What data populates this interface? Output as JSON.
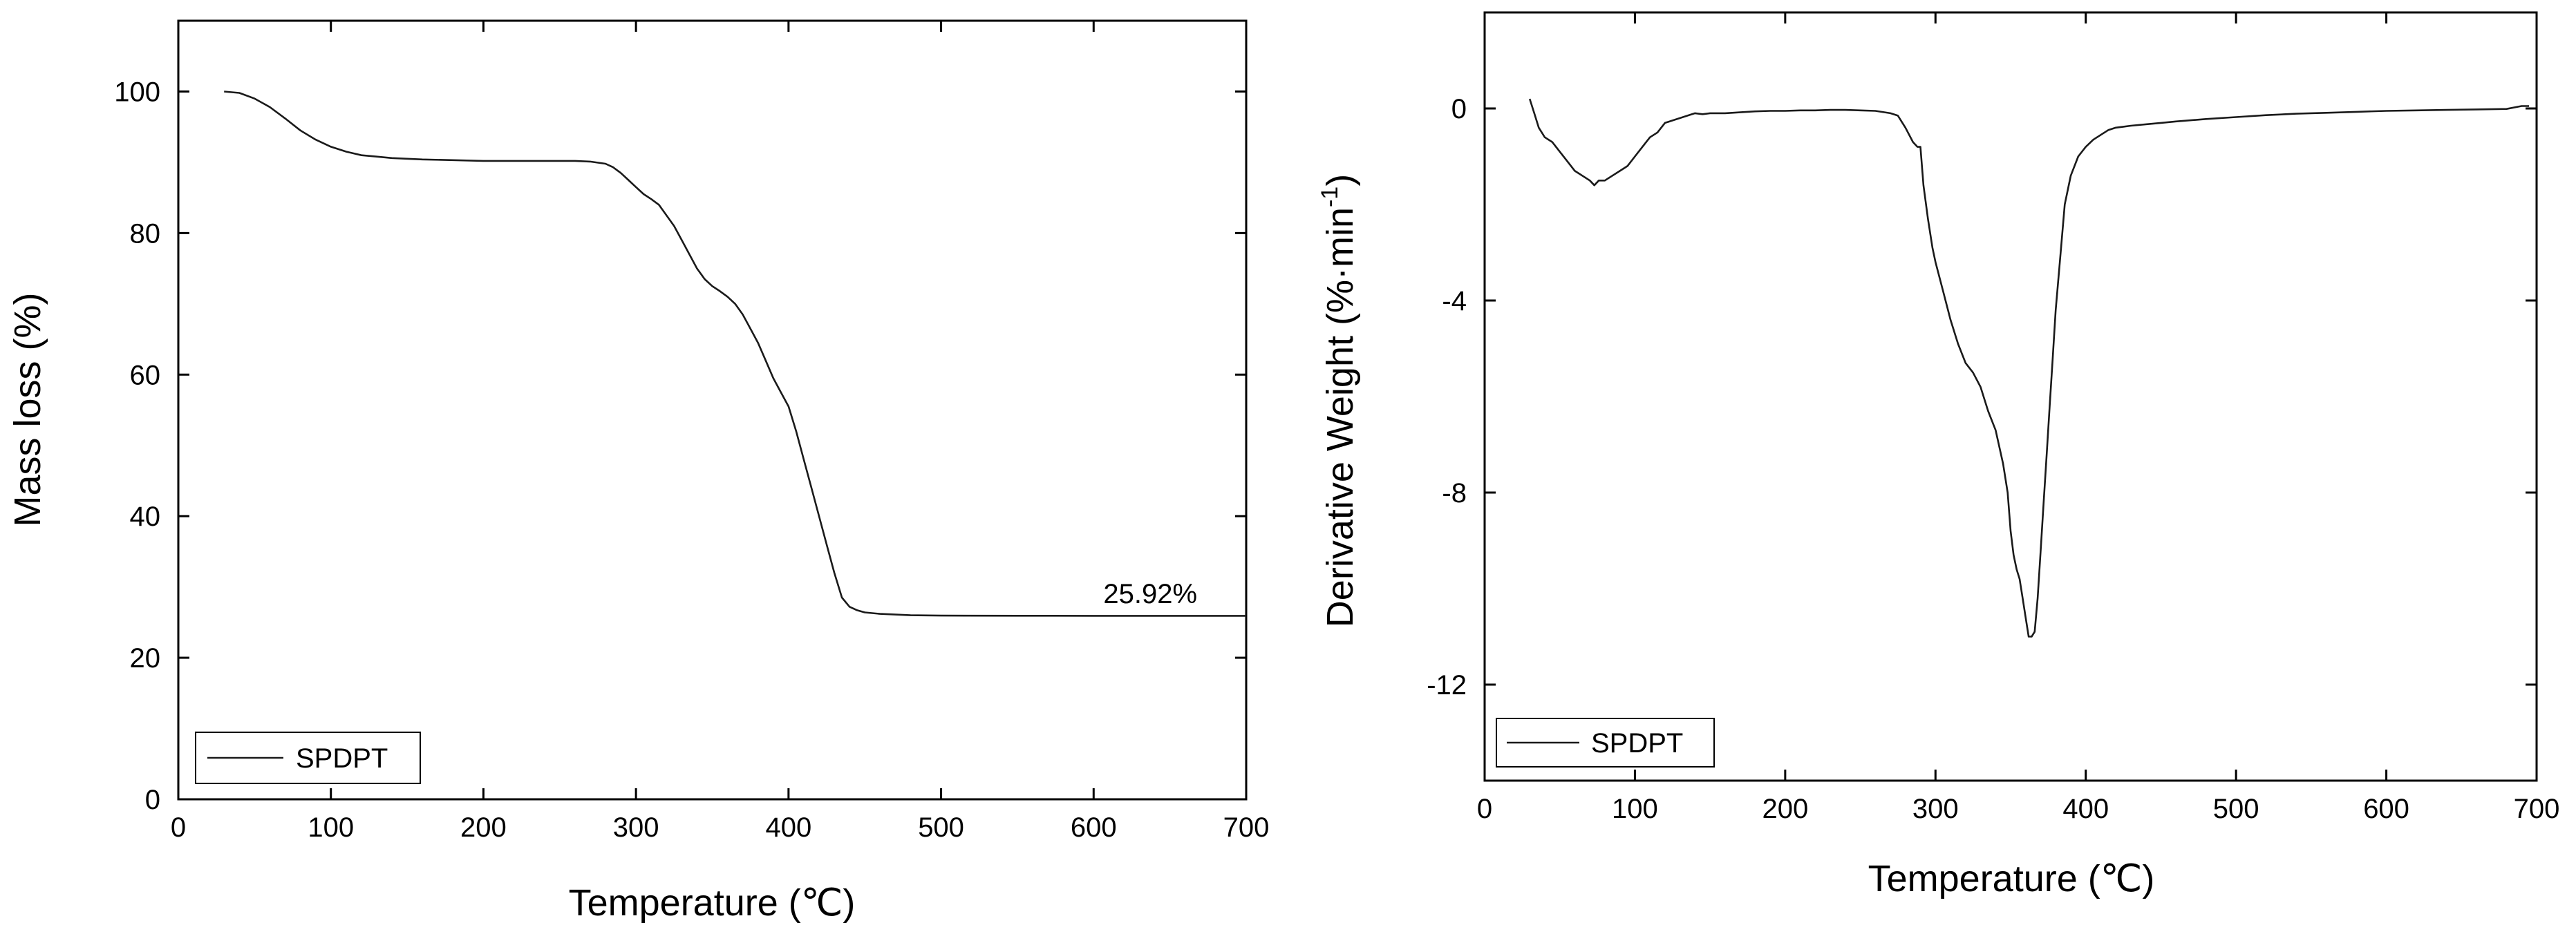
{
  "chart_data": [
    {
      "type": "line",
      "xlabel": "Temperature (℃)",
      "ylabel": "Mass loss (%)",
      "xlim": [
        0,
        700
      ],
      "ylim": [
        0,
        110
      ],
      "x_ticks": [
        0,
        100,
        200,
        300,
        400,
        500,
        600,
        700
      ],
      "y_ticks": [
        0,
        20,
        40,
        60,
        80,
        100
      ],
      "grid": false,
      "legend": {
        "position": "bottom-left",
        "entries": [
          "SPDPT"
        ]
      },
      "annotations": [
        {
          "text": "25.92%",
          "x": 620,
          "y": 28.5
        }
      ],
      "series": [
        {
          "name": "SPDPT",
          "x": [
            30,
            40,
            50,
            60,
            70,
            80,
            90,
            100,
            110,
            120,
            130,
            140,
            160,
            180,
            200,
            220,
            240,
            260,
            270,
            280,
            285,
            290,
            295,
            300,
            305,
            310,
            315,
            320,
            325,
            330,
            335,
            340,
            345,
            350,
            355,
            360,
            365,
            370,
            375,
            380,
            385,
            390,
            395,
            400,
            405,
            410,
            415,
            420,
            425,
            430,
            435,
            440,
            445,
            450,
            460,
            470,
            480,
            500,
            550,
            600,
            650,
            700
          ],
          "y": [
            100,
            99.8,
            99.0,
            97.8,
            96.2,
            94.5,
            93.2,
            92.2,
            91.5,
            91.0,
            90.8,
            90.6,
            90.4,
            90.3,
            90.2,
            90.2,
            90.2,
            90.2,
            90.1,
            89.8,
            89.3,
            88.5,
            87.5,
            86.5,
            85.5,
            84.8,
            84.0,
            82.5,
            81.0,
            79.0,
            77.0,
            75.0,
            73.5,
            72.5,
            71.8,
            71.0,
            70.0,
            68.5,
            66.5,
            64.5,
            62.0,
            59.5,
            57.5,
            55.5,
            52.0,
            48.0,
            44.0,
            40.0,
            36.0,
            32.0,
            28.5,
            27.2,
            26.7,
            26.4,
            26.2,
            26.1,
            26.0,
            25.95,
            25.93,
            25.92,
            25.92,
            25.92
          ]
        }
      ]
    },
    {
      "type": "line",
      "xlabel": "Temperature (℃)",
      "ylabel": "Derivative Weight (%·min",
      "ylabel_sup": "-1",
      "ylabel_close": ")",
      "xlim": [
        0,
        700
      ],
      "ylim": [
        -14,
        2
      ],
      "x_ticks": [
        0,
        100,
        200,
        300,
        400,
        500,
        600,
        700
      ],
      "y_ticks": [
        0,
        -4,
        -8,
        -12
      ],
      "grid": false,
      "legend": {
        "position": "bottom-left",
        "entries": [
          "SPDPT"
        ]
      },
      "series": [
        {
          "name": "SPDPT",
          "x": [
            30,
            33,
            36,
            40,
            45,
            50,
            55,
            60,
            65,
            70,
            73,
            76,
            80,
            85,
            90,
            95,
            100,
            105,
            110,
            115,
            120,
            125,
            130,
            135,
            140,
            145,
            150,
            160,
            170,
            180,
            190,
            200,
            210,
            220,
            230,
            240,
            250,
            260,
            270,
            275,
            280,
            285,
            288,
            290,
            292,
            295,
            298,
            300,
            305,
            310,
            315,
            320,
            325,
            330,
            335,
            340,
            345,
            348,
            350,
            352,
            354,
            356,
            358,
            360,
            362,
            364,
            366,
            368,
            370,
            372,
            374,
            376,
            378,
            380,
            383,
            386,
            390,
            395,
            400,
            405,
            410,
            415,
            420,
            425,
            430,
            440,
            450,
            460,
            480,
            500,
            520,
            540,
            560,
            580,
            600,
            620,
            640,
            660,
            680,
            690,
            695
          ],
          "y": [
            0.2,
            -0.1,
            -0.4,
            -0.6,
            -0.7,
            -0.9,
            -1.1,
            -1.3,
            -1.4,
            -1.5,
            -1.6,
            -1.5,
            -1.5,
            -1.4,
            -1.3,
            -1.2,
            -1.0,
            -0.8,
            -0.6,
            -0.5,
            -0.3,
            -0.25,
            -0.2,
            -0.15,
            -0.1,
            -0.12,
            -0.1,
            -0.1,
            -0.08,
            -0.06,
            -0.05,
            -0.05,
            -0.04,
            -0.04,
            -0.03,
            -0.03,
            -0.04,
            -0.05,
            -0.1,
            -0.15,
            -0.4,
            -0.7,
            -0.8,
            -0.8,
            -1.6,
            -2.3,
            -2.9,
            -3.2,
            -3.8,
            -4.4,
            -4.9,
            -5.3,
            -5.5,
            -5.8,
            -6.3,
            -6.7,
            -7.4,
            -8.0,
            -8.8,
            -9.3,
            -9.6,
            -9.8,
            -10.2,
            -10.6,
            -11.0,
            -11.0,
            -10.9,
            -10.2,
            -9.2,
            -8.2,
            -7.2,
            -6.2,
            -5.2,
            -4.2,
            -3.1,
            -2.0,
            -1.4,
            -1.0,
            -0.8,
            -0.65,
            -0.55,
            -0.45,
            -0.4,
            -0.38,
            -0.36,
            -0.33,
            -0.3,
            -0.27,
            -0.22,
            -0.18,
            -0.14,
            -0.11,
            -0.09,
            -0.07,
            -0.05,
            -0.04,
            -0.03,
            -0.02,
            -0.01,
            0.05,
            0.05
          ]
        }
      ]
    }
  ]
}
